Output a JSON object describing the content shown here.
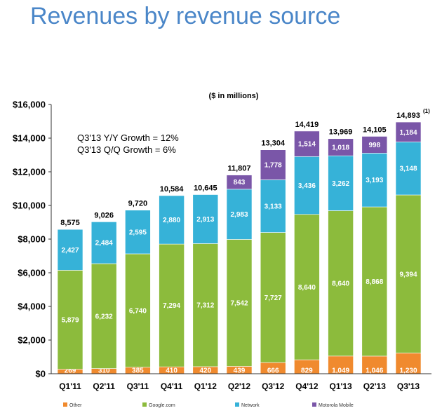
{
  "title": "Revenues by revenue source",
  "chart_data": {
    "type": "bar",
    "stacked": true,
    "unit_note": "($ in millions)",
    "annotations": [
      "Q3'13 Y/Y Growth = 12%",
      "Q3'13 Q/Q Growth = 6%"
    ],
    "categories": [
      "Q1'11",
      "Q2'11",
      "Q3'11",
      "Q4'11",
      "Q1'12",
      "Q2'12",
      "Q3'12",
      "Q4'12",
      "Q1'13",
      "Q2'13",
      "Q3'13"
    ],
    "series": [
      {
        "name": "Other",
        "color": "#f08a2e",
        "values": [
          269,
          310,
          385,
          410,
          420,
          439,
          666,
          829,
          1049,
          1046,
          1230
        ]
      },
      {
        "name": "Google.com",
        "color": "#8cbb3c",
        "values": [
          5879,
          6232,
          6740,
          7294,
          7312,
          7542,
          7727,
          8640,
          8640,
          8868,
          9394
        ]
      },
      {
        "name": "Network",
        "color": "#36b2d8",
        "values": [
          2427,
          2484,
          2595,
          2880,
          2913,
          2983,
          3133,
          3436,
          3262,
          3193,
          3148
        ]
      },
      {
        "name": "Motorola Mobile",
        "color": "#7a56a8",
        "values": [
          null,
          null,
          null,
          null,
          null,
          843,
          1778,
          1514,
          1018,
          998,
          1184
        ]
      }
    ],
    "totals": [
      "8,575",
      "9,026",
      "9,720",
      "10,584",
      "10,645",
      "11,807",
      "13,304",
      "14,419",
      "13,969",
      "14,105",
      "14,893"
    ],
    "total_footnote": {
      "index": 10,
      "text": "(1)"
    },
    "y_ticks": [
      0,
      2000,
      4000,
      6000,
      8000,
      10000,
      12000,
      14000,
      16000
    ],
    "y_tick_labels": [
      "$0",
      "$2,000",
      "$4,000",
      "$6,000",
      "$8,000",
      "$10,000",
      "$12,000",
      "$14,000",
      "$16,000"
    ],
    "ylim": [
      0,
      16000
    ],
    "grid": false,
    "legend_position": "bottom"
  }
}
